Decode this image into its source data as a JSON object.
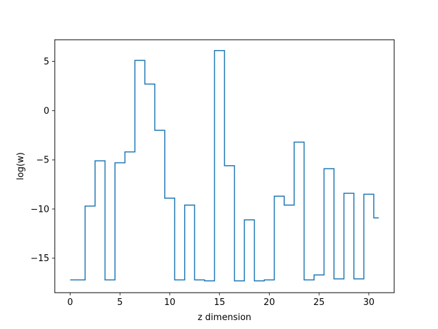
{
  "chart_data": {
    "type": "line",
    "drawstyle": "steps-mid",
    "xlabel": "z dimension",
    "ylabel": "log(w)",
    "xlim": [
      -1.55,
      32.55
    ],
    "ylim": [
      -18.5,
      7.2
    ],
    "xticks": [
      0,
      5,
      10,
      15,
      20,
      25,
      30
    ],
    "yticks": [
      -15,
      -10,
      -5,
      0,
      5
    ],
    "grid": false,
    "color": "#1f77b4",
    "x": [
      0,
      1,
      2,
      3,
      4,
      5,
      6,
      7,
      8,
      9,
      10,
      11,
      12,
      13,
      14,
      15,
      16,
      17,
      18,
      19,
      20,
      21,
      22,
      23,
      24,
      25,
      26,
      27,
      28,
      29,
      30,
      31
    ],
    "values": [
      -17.2,
      -17.2,
      -9.7,
      -5.1,
      -17.2,
      -5.3,
      -4.2,
      5.1,
      2.7,
      -2.0,
      -8.9,
      -17.2,
      -9.6,
      -17.2,
      -17.3,
      6.1,
      -5.6,
      -17.3,
      -11.1,
      -17.3,
      -17.2,
      -8.7,
      -9.6,
      -3.2,
      -17.2,
      -16.7,
      -5.9,
      -17.1,
      -8.4,
      -17.1,
      -8.5,
      -10.9
    ]
  }
}
